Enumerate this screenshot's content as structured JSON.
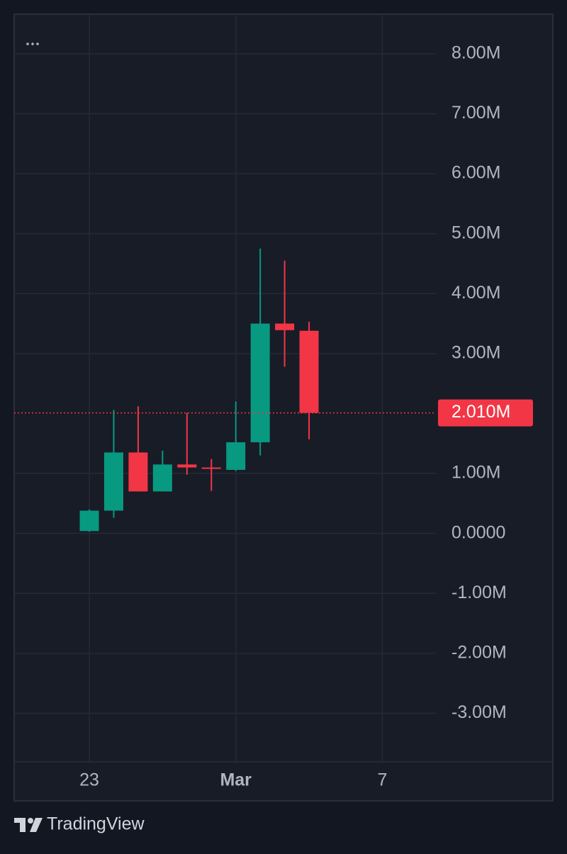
{
  "chart_data": {
    "type": "candlestick",
    "categories": [
      null,
      null,
      null,
      "23",
      null,
      null,
      null,
      null,
      null,
      "Mar",
      null,
      null,
      null,
      null,
      null,
      "7",
      null,
      null
    ],
    "open": [
      null,
      null,
      null,
      40000,
      380000,
      1350000,
      700000,
      1150000,
      1100000,
      1060000,
      1520000,
      3500000,
      3380000,
      null,
      null,
      null,
      null,
      null
    ],
    "high": [
      null,
      null,
      null,
      400000,
      2060000,
      2120000,
      1380000,
      2010000,
      1240000,
      2200000,
      4750000,
      4550000,
      3530000,
      null,
      null,
      null,
      null,
      null
    ],
    "low": [
      null,
      null,
      null,
      30000,
      260000,
      700000,
      700000,
      980000,
      710000,
      1040000,
      1300000,
      2780000,
      1570000,
      null,
      null,
      null,
      null,
      null
    ],
    "close": [
      null,
      null,
      null,
      380000,
      1350000,
      700000,
      1150000,
      1100000,
      1080000,
      1520000,
      3500000,
      3390000,
      2010000,
      null,
      null,
      null,
      null,
      null
    ],
    "up_color": "#089981",
    "down_color": "#f23645",
    "ylim": [
      -3810000,
      8660000
    ],
    "yticks": [
      {
        "value": 8000000,
        "label": "8.00M"
      },
      {
        "value": 7000000,
        "label": "7.00M"
      },
      {
        "value": 6000000,
        "label": "6.00M"
      },
      {
        "value": 5000000,
        "label": "5.00M"
      },
      {
        "value": 4000000,
        "label": "4.00M"
      },
      {
        "value": 3000000,
        "label": "3.00M"
      },
      {
        "value": 1000000,
        "label": "1.00M"
      },
      {
        "value": 0,
        "label": "0.0000"
      },
      {
        "value": -1000000,
        "label": "-1.00M"
      },
      {
        "value": -2000000,
        "label": "-2.00M"
      },
      {
        "value": -3000000,
        "label": "-3.00M"
      }
    ],
    "last_price": {
      "value": 2010000,
      "label": "2.010M"
    },
    "grid": true,
    "watermark": "TradingView"
  }
}
